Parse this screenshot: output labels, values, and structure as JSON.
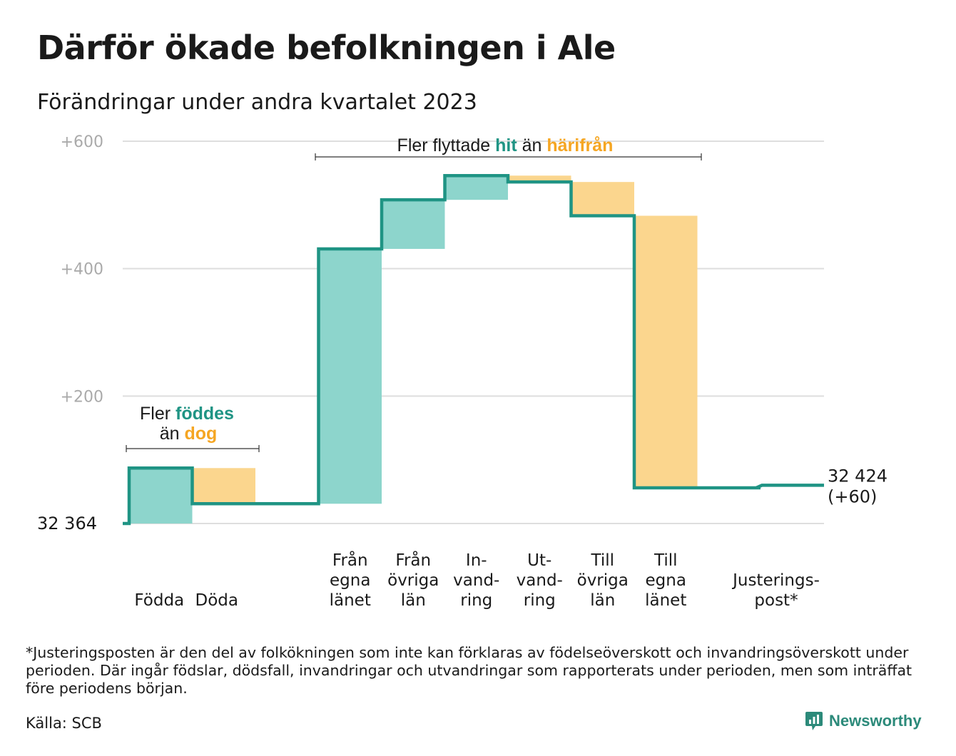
{
  "title": "Därför ökade befolkningen i Ale",
  "subtitle": "Förändringar under andra kvartalet 2023",
  "colors": {
    "line": "#1f9484",
    "inflow": "#8dd5cc",
    "outflow": "#fbd68e",
    "hit": "#1f9484",
    "harifran": "#f5a623",
    "grid": "#dedede",
    "tick": "#aaaaaa"
  },
  "chart_data": {
    "type": "bar",
    "variant": "waterfall",
    "start_value": 32364,
    "end_value": 32424,
    "start_label": "32  364",
    "end_label_value": "32 424",
    "end_label_change": "(+60)",
    "ylim": [
      0,
      600
    ],
    "yticks": [
      {
        "value": 200,
        "label": "+200"
      },
      {
        "value": 400,
        "label": "+400"
      },
      {
        "value": 600,
        "label": "+600"
      }
    ],
    "grid": true,
    "steps": [
      {
        "label": [
          "Födda"
        ],
        "from": 0,
        "to": 87,
        "kind": "in"
      },
      {
        "label": [
          "Döda"
        ],
        "from": 87,
        "to": 31,
        "kind": "out"
      },
      {
        "label": [
          ""
        ],
        "from": 31,
        "to": 31,
        "kind": "none"
      },
      {
        "label": [
          "Från",
          "egna",
          "länet"
        ],
        "from": 31,
        "to": 431,
        "kind": "in"
      },
      {
        "label": [
          "Från",
          "övriga",
          "län"
        ],
        "from": 431,
        "to": 508,
        "kind": "in"
      },
      {
        "label": [
          "In-",
          "vand-",
          "ring"
        ],
        "from": 508,
        "to": 546,
        "kind": "in"
      },
      {
        "label": [
          "Ut-",
          "vand-",
          "ring"
        ],
        "from": 546,
        "to": 536,
        "kind": "out"
      },
      {
        "label": [
          "Till",
          "övriga",
          "län"
        ],
        "from": 536,
        "to": 483,
        "kind": "out"
      },
      {
        "label": [
          "Till",
          "egna",
          "länet"
        ],
        "from": 483,
        "to": 56,
        "kind": "out"
      },
      {
        "label": [
          ""
        ],
        "from": 56,
        "to": 56,
        "kind": "none"
      },
      {
        "label": [
          "Justerings-",
          "post*"
        ],
        "from": 56,
        "to": 60,
        "kind": "adjust"
      }
    ],
    "annotations": [
      {
        "id": "fodda",
        "line1": [
          "Fler ",
          "föddes"
        ],
        "line2": [
          "än ",
          "dog"
        ]
      },
      {
        "id": "flytt",
        "parts": [
          "Fler flyttade ",
          "hit",
          " än ",
          "härifrån"
        ]
      }
    ]
  },
  "footnote": "*Justeringsposten är den del av folkökningen som inte kan förklaras av födelseöverskott och invandringsöverskott under perioden. Där ingår födslar, dödsfall, invandringar och utvandringar som rapporterats under perioden, men som inträffat före periodens början.",
  "source": "Källa: SCB",
  "brand": {
    "name": "Newsworthy",
    "icon": "newsworthy-chart-icon"
  }
}
